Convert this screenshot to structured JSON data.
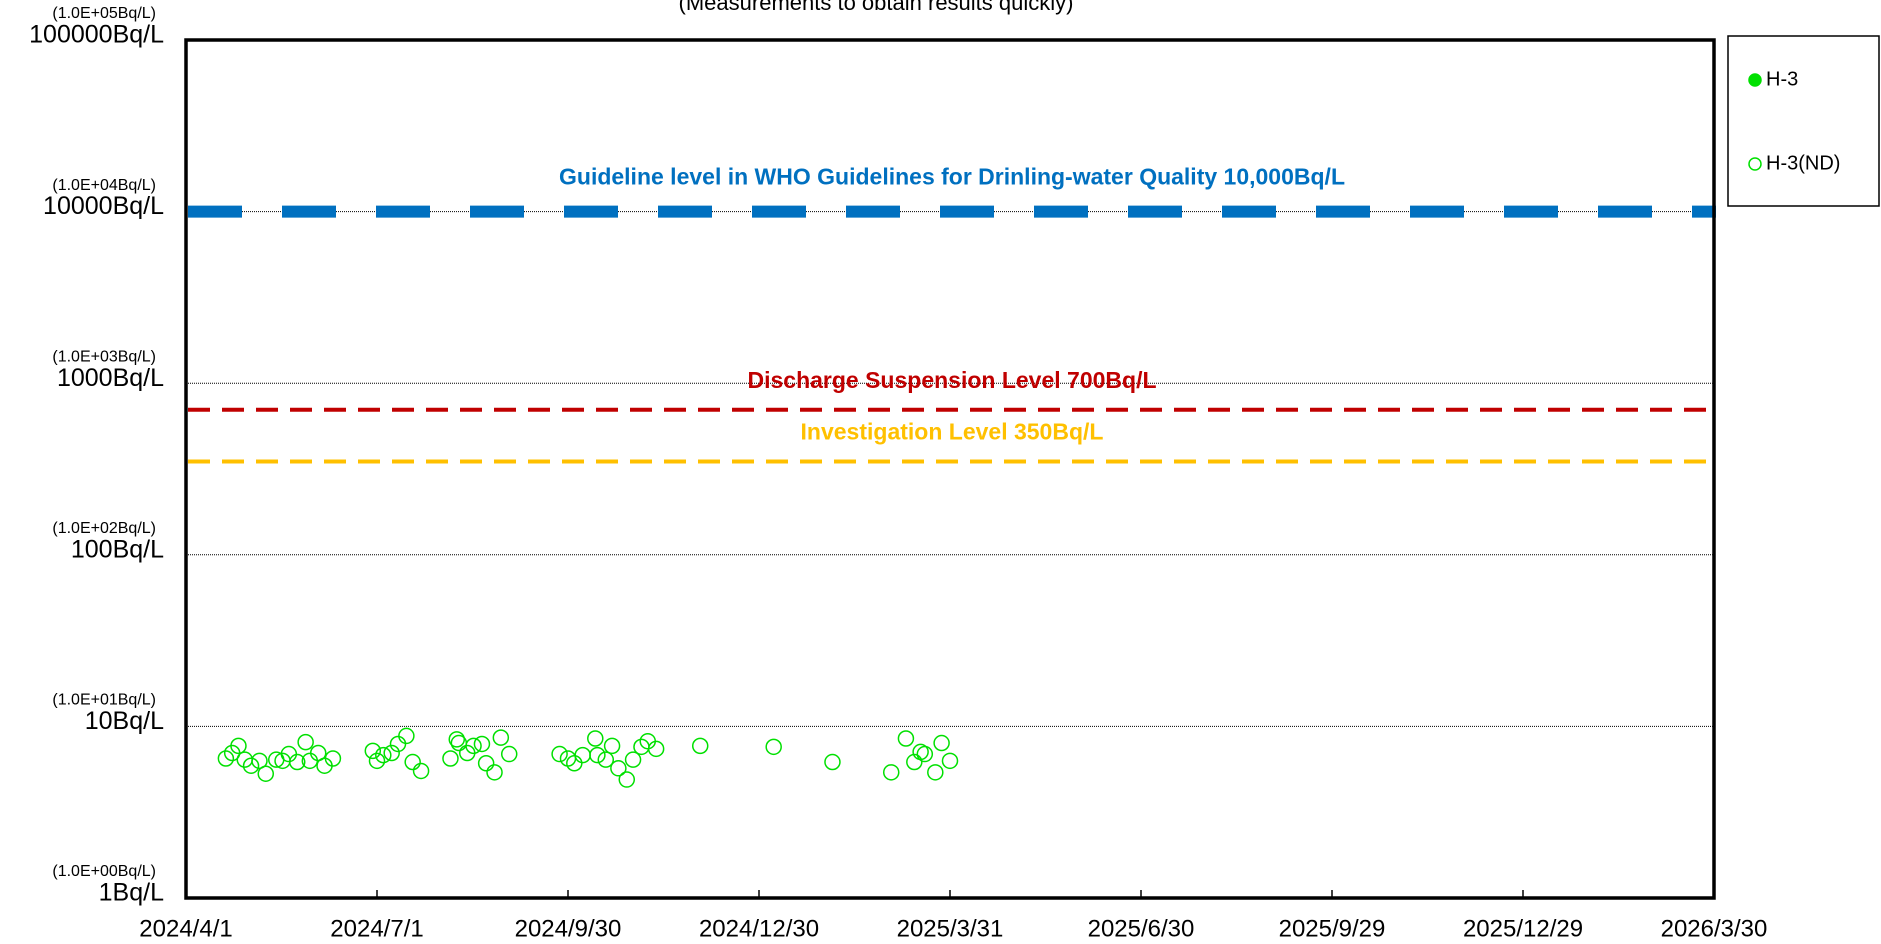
{
  "chart_data": {
    "type": "scatter",
    "subtitle": "(Measurements to obtain results quickly)",
    "log_scale_y": true,
    "grid": true,
    "legend": "right",
    "ylim": [
      1,
      100000
    ],
    "yticks": [
      {
        "value": 1,
        "label": "1Bq/L",
        "sublabel": "(1.0E+00Bq/L)"
      },
      {
        "value": 10,
        "label": "10Bq/L",
        "sublabel": "(1.0E+01Bq/L)"
      },
      {
        "value": 100,
        "label": "100Bq/L",
        "sublabel": "(1.0E+02Bq/L)"
      },
      {
        "value": 1000,
        "label": "1000Bq/L",
        "sublabel": "(1.0E+03Bq/L)"
      },
      {
        "value": 10000,
        "label": "10000Bq/L",
        "sublabel": "(1.0E+04Bq/L)"
      },
      {
        "value": 100000,
        "label": "100000Bq/L",
        "sublabel": "(1.0E+05Bq/L)"
      }
    ],
    "xlim": [
      "2024/4/1",
      "2026/3/30"
    ],
    "xticks": [
      "2024/4/1",
      "2024/7/1",
      "2024/9/30",
      "2024/12/30",
      "2025/3/31",
      "2025/6/30",
      "2025/9/29",
      "2025/12/29",
      "2026/3/30"
    ],
    "reference_lines": [
      {
        "label": "Guideline level in WHO Guidelines for Drinling-water Quality 10,000Bq/L",
        "value": 10000,
        "color": "#0070c0",
        "width": "thick"
      },
      {
        "label": "Discharge Suspension Level 700Bq/L",
        "value": 700,
        "color": "#c00000",
        "width": "thin"
      },
      {
        "label": "Investigation Level 350Bq/L",
        "value": 350,
        "color": "#ffc000",
        "width": "thin"
      }
    ],
    "series": [
      {
        "name": "H-3",
        "color": "#00e000",
        "marker": "filled",
        "x": [],
        "values": []
      },
      {
        "name": "H-3(ND)",
        "color": "#00e000",
        "marker": "open",
        "x": [
          "2024/4/20",
          "2024/4/23",
          "2024/4/26",
          "2024/4/29",
          "2024/5/2",
          "2024/5/6",
          "2024/5/9",
          "2024/5/14",
          "2024/5/17",
          "2024/5/20",
          "2024/5/24",
          "2024/5/28",
          "2024/5/30",
          "2024/6/3",
          "2024/6/6",
          "2024/6/10",
          "2024/6/29",
          "2024/7/1",
          "2024/7/4",
          "2024/7/8",
          "2024/7/11",
          "2024/7/15",
          "2024/7/18",
          "2024/7/22",
          "2024/8/5",
          "2024/8/8",
          "2024/8/9",
          "2024/8/13",
          "2024/8/16",
          "2024/8/20",
          "2024/8/22",
          "2024/8/26",
          "2024/8/29",
          "2024/9/2",
          "2024/9/26",
          "2024/9/30",
          "2024/10/3",
          "2024/10/7",
          "2024/10/13",
          "2024/10/14",
          "2024/10/18",
          "2024/10/21",
          "2024/10/24",
          "2024/10/28",
          "2024/10/31",
          "2024/11/4",
          "2024/11/7",
          "2024/11/11",
          "2024/12/2",
          "2025/1/6",
          "2025/2/3",
          "2025/3/3",
          "2025/3/10",
          "2025/3/14",
          "2025/3/17",
          "2025/3/19",
          "2025/3/24",
          "2025/3/27",
          "2025/3/31"
        ],
        "values": [
          6.5,
          7.0,
          7.7,
          6.4,
          5.9,
          6.3,
          5.3,
          6.4,
          6.3,
          6.9,
          6.2,
          8.1,
          6.3,
          7.0,
          5.9,
          6.5,
          7.2,
          6.3,
          6.8,
          7.0,
          7.9,
          8.8,
          6.2,
          5.5,
          6.5,
          8.4,
          8.0,
          7.0,
          7.7,
          7.9,
          6.1,
          5.4,
          8.6,
          6.9,
          6.9,
          6.5,
          6.1,
          6.8,
          8.5,
          6.8,
          6.4,
          7.7,
          5.7,
          4.9,
          6.4,
          7.6,
          8.2,
          7.4,
          7.7,
          7.6,
          6.2,
          5.4,
          8.5,
          6.2,
          7.1,
          6.9,
          5.4,
          8.0,
          6.3
        ]
      }
    ]
  }
}
